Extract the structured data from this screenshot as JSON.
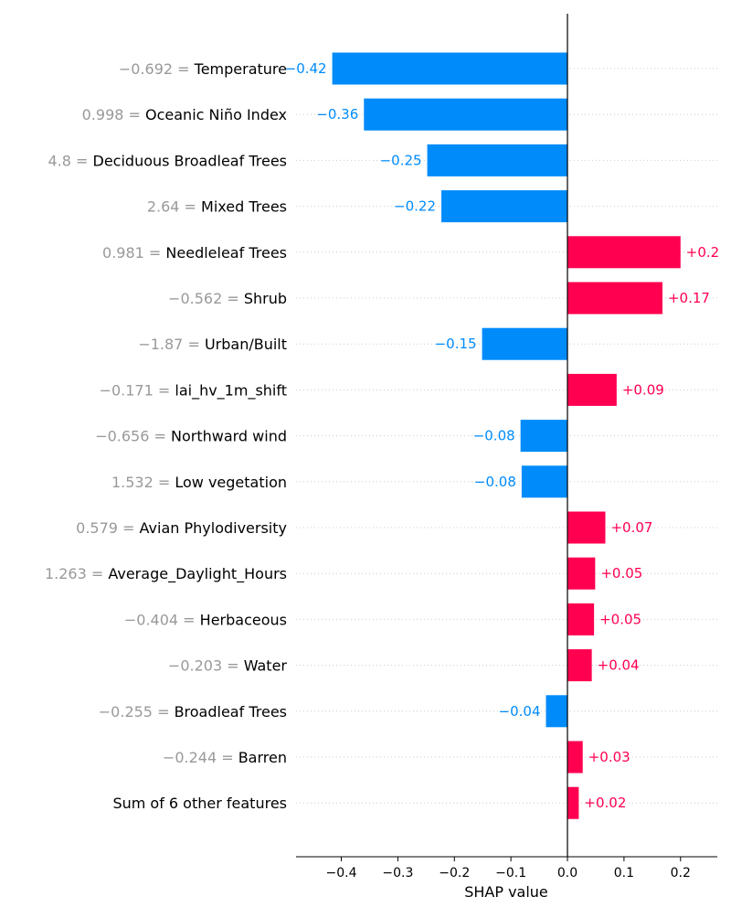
{
  "chart_data": {
    "type": "bar",
    "orientation": "horizontal",
    "xlabel": "SHAP value",
    "xlim": [
      -0.48,
      0.265
    ],
    "xticks": [
      -0.4,
      -0.3,
      -0.2,
      -0.1,
      0.0,
      0.1,
      0.2
    ],
    "xtick_labels": [
      "−0.4",
      "−0.3",
      "−0.2",
      "−0.1",
      "0.0",
      "0.1",
      "0.2"
    ],
    "grid": "horizontal dotted",
    "colors": {
      "positive": "#ff0051",
      "negative": "#008bfb",
      "feature_value": "#999999"
    },
    "features": [
      {
        "value_label": "−0.692 =",
        "name": "Temperature",
        "shap": -0.416,
        "label": "−0.42"
      },
      {
        "value_label": "0.998 =",
        "name": "Oceanic Niño Index",
        "shap": -0.36,
        "label": "−0.36"
      },
      {
        "value_label": "4.8 =",
        "name": "Deciduous Broadleaf Trees",
        "shap": -0.248,
        "label": "−0.25"
      },
      {
        "value_label": "2.64 =",
        "name": "Mixed Trees",
        "shap": -0.223,
        "label": "−0.22"
      },
      {
        "value_label": "0.981 =",
        "name": "Needleleaf Trees",
        "shap": 0.2,
        "label": "+0.2"
      },
      {
        "value_label": "−0.562 =",
        "name": "Shrub",
        "shap": 0.168,
        "label": "+0.17"
      },
      {
        "value_label": "−1.87 =",
        "name": "Urban/Built",
        "shap": -0.151,
        "label": "−0.15"
      },
      {
        "value_label": "−0.171 =",
        "name": "lai_hv_1m_shift",
        "shap": 0.087,
        "label": "+0.09"
      },
      {
        "value_label": "−0.656 =",
        "name": "Northward wind",
        "shap": -0.083,
        "label": "−0.08"
      },
      {
        "value_label": "1.532 =",
        "name": "Low vegetation",
        "shap": -0.081,
        "label": "−0.08"
      },
      {
        "value_label": "0.579 =",
        "name": "Avian Phylodiversity",
        "shap": 0.067,
        "label": "+0.07"
      },
      {
        "value_label": "1.263 =",
        "name": "Average_Daylight_Hours",
        "shap": 0.049,
        "label": "+0.05"
      },
      {
        "value_label": "−0.404 =",
        "name": "Herbaceous",
        "shap": 0.047,
        "label": "+0.05"
      },
      {
        "value_label": "−0.203 =",
        "name": "Water",
        "shap": 0.043,
        "label": "+0.04"
      },
      {
        "value_label": "−0.255 =",
        "name": "Broadleaf Trees",
        "shap": -0.038,
        "label": "−0.04"
      },
      {
        "value_label": "−0.244 =",
        "name": "Barren",
        "shap": 0.027,
        "label": "+0.03"
      },
      {
        "value_label": "",
        "name": "Sum of 6 other features",
        "shap": 0.02,
        "label": "+0.02"
      }
    ]
  }
}
